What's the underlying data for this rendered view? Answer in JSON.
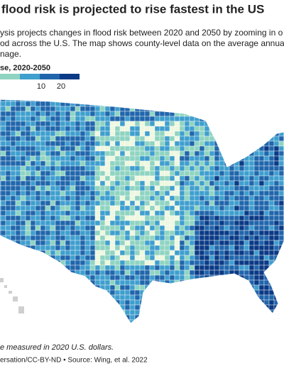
{
  "header": {
    "title": "flood risk is projected to rise fastest in the US",
    "subtitle": [
      "ysis projects changes in flood risk between 2020 and 2050 by zooming in o",
      "od across the U.S. The map shows county-level data on the average annua",
      "nage."
    ]
  },
  "legend": {
    "title": "se, 2020-2050",
    "colors": [
      "#eef7df",
      "#8fd4c1",
      "#3f9fce",
      "#2166ac",
      "#0b3a86"
    ],
    "ticks": [
      "10",
      "20"
    ]
  },
  "footnote": "e measured in 2020 U.S. dollars.",
  "source": "ersation/CC-BY-ND • Source: Wing, et al. 2022"
}
